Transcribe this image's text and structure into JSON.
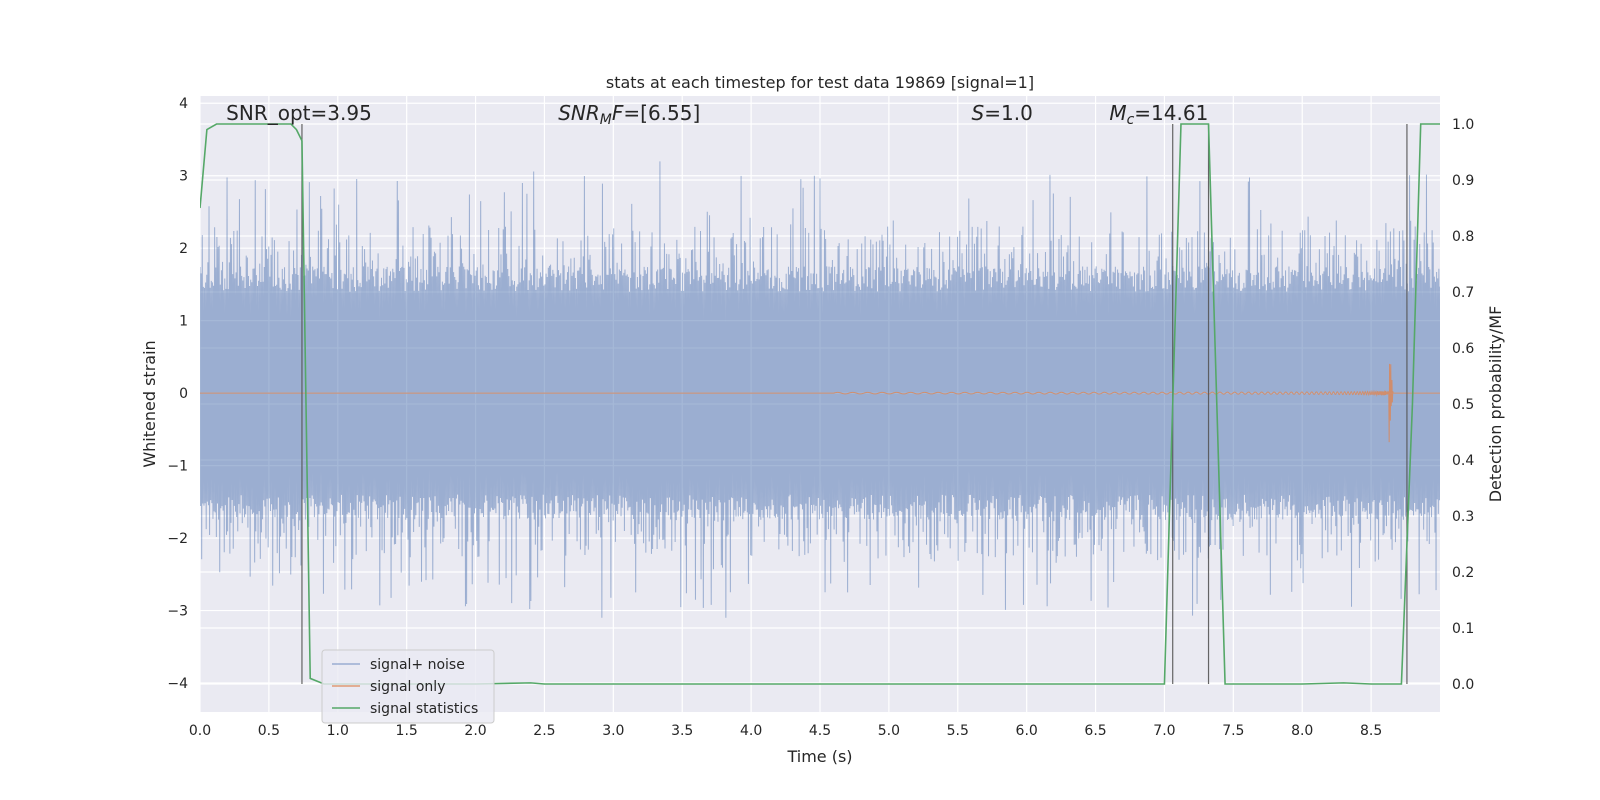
{
  "chart_data": {
    "type": "line",
    "title": "stats at each timestep for test data 19869 [signal=1]",
    "xlabel": "Time (s)",
    "ylabel": "Whitened strain",
    "y2label": "Detection probability/MF",
    "xlim": [
      0.0,
      9.0
    ],
    "ylim": [
      -4.4,
      4.1
    ],
    "y2lim": [
      -0.05,
      1.05
    ],
    "x_ticks": [
      "0.0",
      "0.5",
      "1.0",
      "1.5",
      "2.0",
      "2.5",
      "3.0",
      "3.5",
      "4.0",
      "4.5",
      "5.0",
      "5.5",
      "6.0",
      "6.5",
      "7.0",
      "7.5",
      "8.0",
      "8.5"
    ],
    "y_ticks": [
      "−4",
      "−3",
      "−2",
      "−1",
      "0",
      "1",
      "2",
      "3",
      "4"
    ],
    "y2_ticks": [
      "0.0",
      "0.1",
      "0.2",
      "0.3",
      "0.4",
      "0.5",
      "0.6",
      "0.7",
      "0.8",
      "0.9",
      "1.0"
    ],
    "grid": true,
    "legend_position": "bottom-left",
    "annotations": [
      {
        "name": "snr-opt",
        "text": "SNR_opt=3.95",
        "x": 0.19,
        "y": 3.77
      },
      {
        "name": "snr-mf",
        "text": "SNR_MF=[6.55]",
        "x": 2.6,
        "y": 3.77
      },
      {
        "name": "s",
        "text": "S=1.0",
        "x": 5.6,
        "y": 3.77
      },
      {
        "name": "mc",
        "text": "M_c=14.61",
        "x": 6.6,
        "y": 3.77
      }
    ],
    "series": [
      {
        "name": "signal+ noise",
        "color": "#4c72b0",
        "opacity": 0.5,
        "kind": "noise",
        "core_amplitude": 1.4,
        "peak_range": [
          -3.1,
          3.2
        ]
      },
      {
        "name": "signal only",
        "color": "#dd8452",
        "kind": "chirp",
        "x_start": 4.6,
        "x_peak": 8.63,
        "x_end": 8.66,
        "peak_amplitude": 0.7
      },
      {
        "name": "signal statistics",
        "color": "#55a868",
        "axis": "y2",
        "x": [
          0.0,
          0.05,
          0.12,
          0.2,
          0.3,
          0.5,
          0.66,
          0.7,
          0.74,
          0.8,
          0.9,
          1.2,
          2.0,
          2.4,
          2.5,
          3.0,
          5.0,
          6.5,
          7.0,
          7.06,
          7.12,
          7.3,
          7.32,
          7.38,
          7.44,
          8.0,
          8.3,
          8.5,
          8.72,
          8.8,
          8.86,
          8.9,
          9.0
        ],
        "y": [
          0.85,
          0.99,
          1.0,
          1.0,
          1.0,
          1.0,
          1.0,
          0.99,
          0.97,
          0.01,
          0.0,
          0.0,
          0.0,
          0.002,
          0.0,
          0.0,
          0.0,
          0.0,
          0.0,
          0.5,
          1.0,
          1.0,
          1.0,
          0.5,
          0.0,
          0.0,
          0.002,
          0.0,
          0.0,
          0.5,
          1.0,
          1.0,
          1.0
        ]
      }
    ],
    "vertical_markers": {
      "color": "#555555",
      "x": [
        0.74,
        7.06,
        7.32,
        8.76
      ],
      "y2_range": [
        0.0,
        1.0
      ]
    }
  },
  "legend": {
    "items": [
      "signal+ noise",
      "signal only",
      "signal statistics"
    ]
  }
}
